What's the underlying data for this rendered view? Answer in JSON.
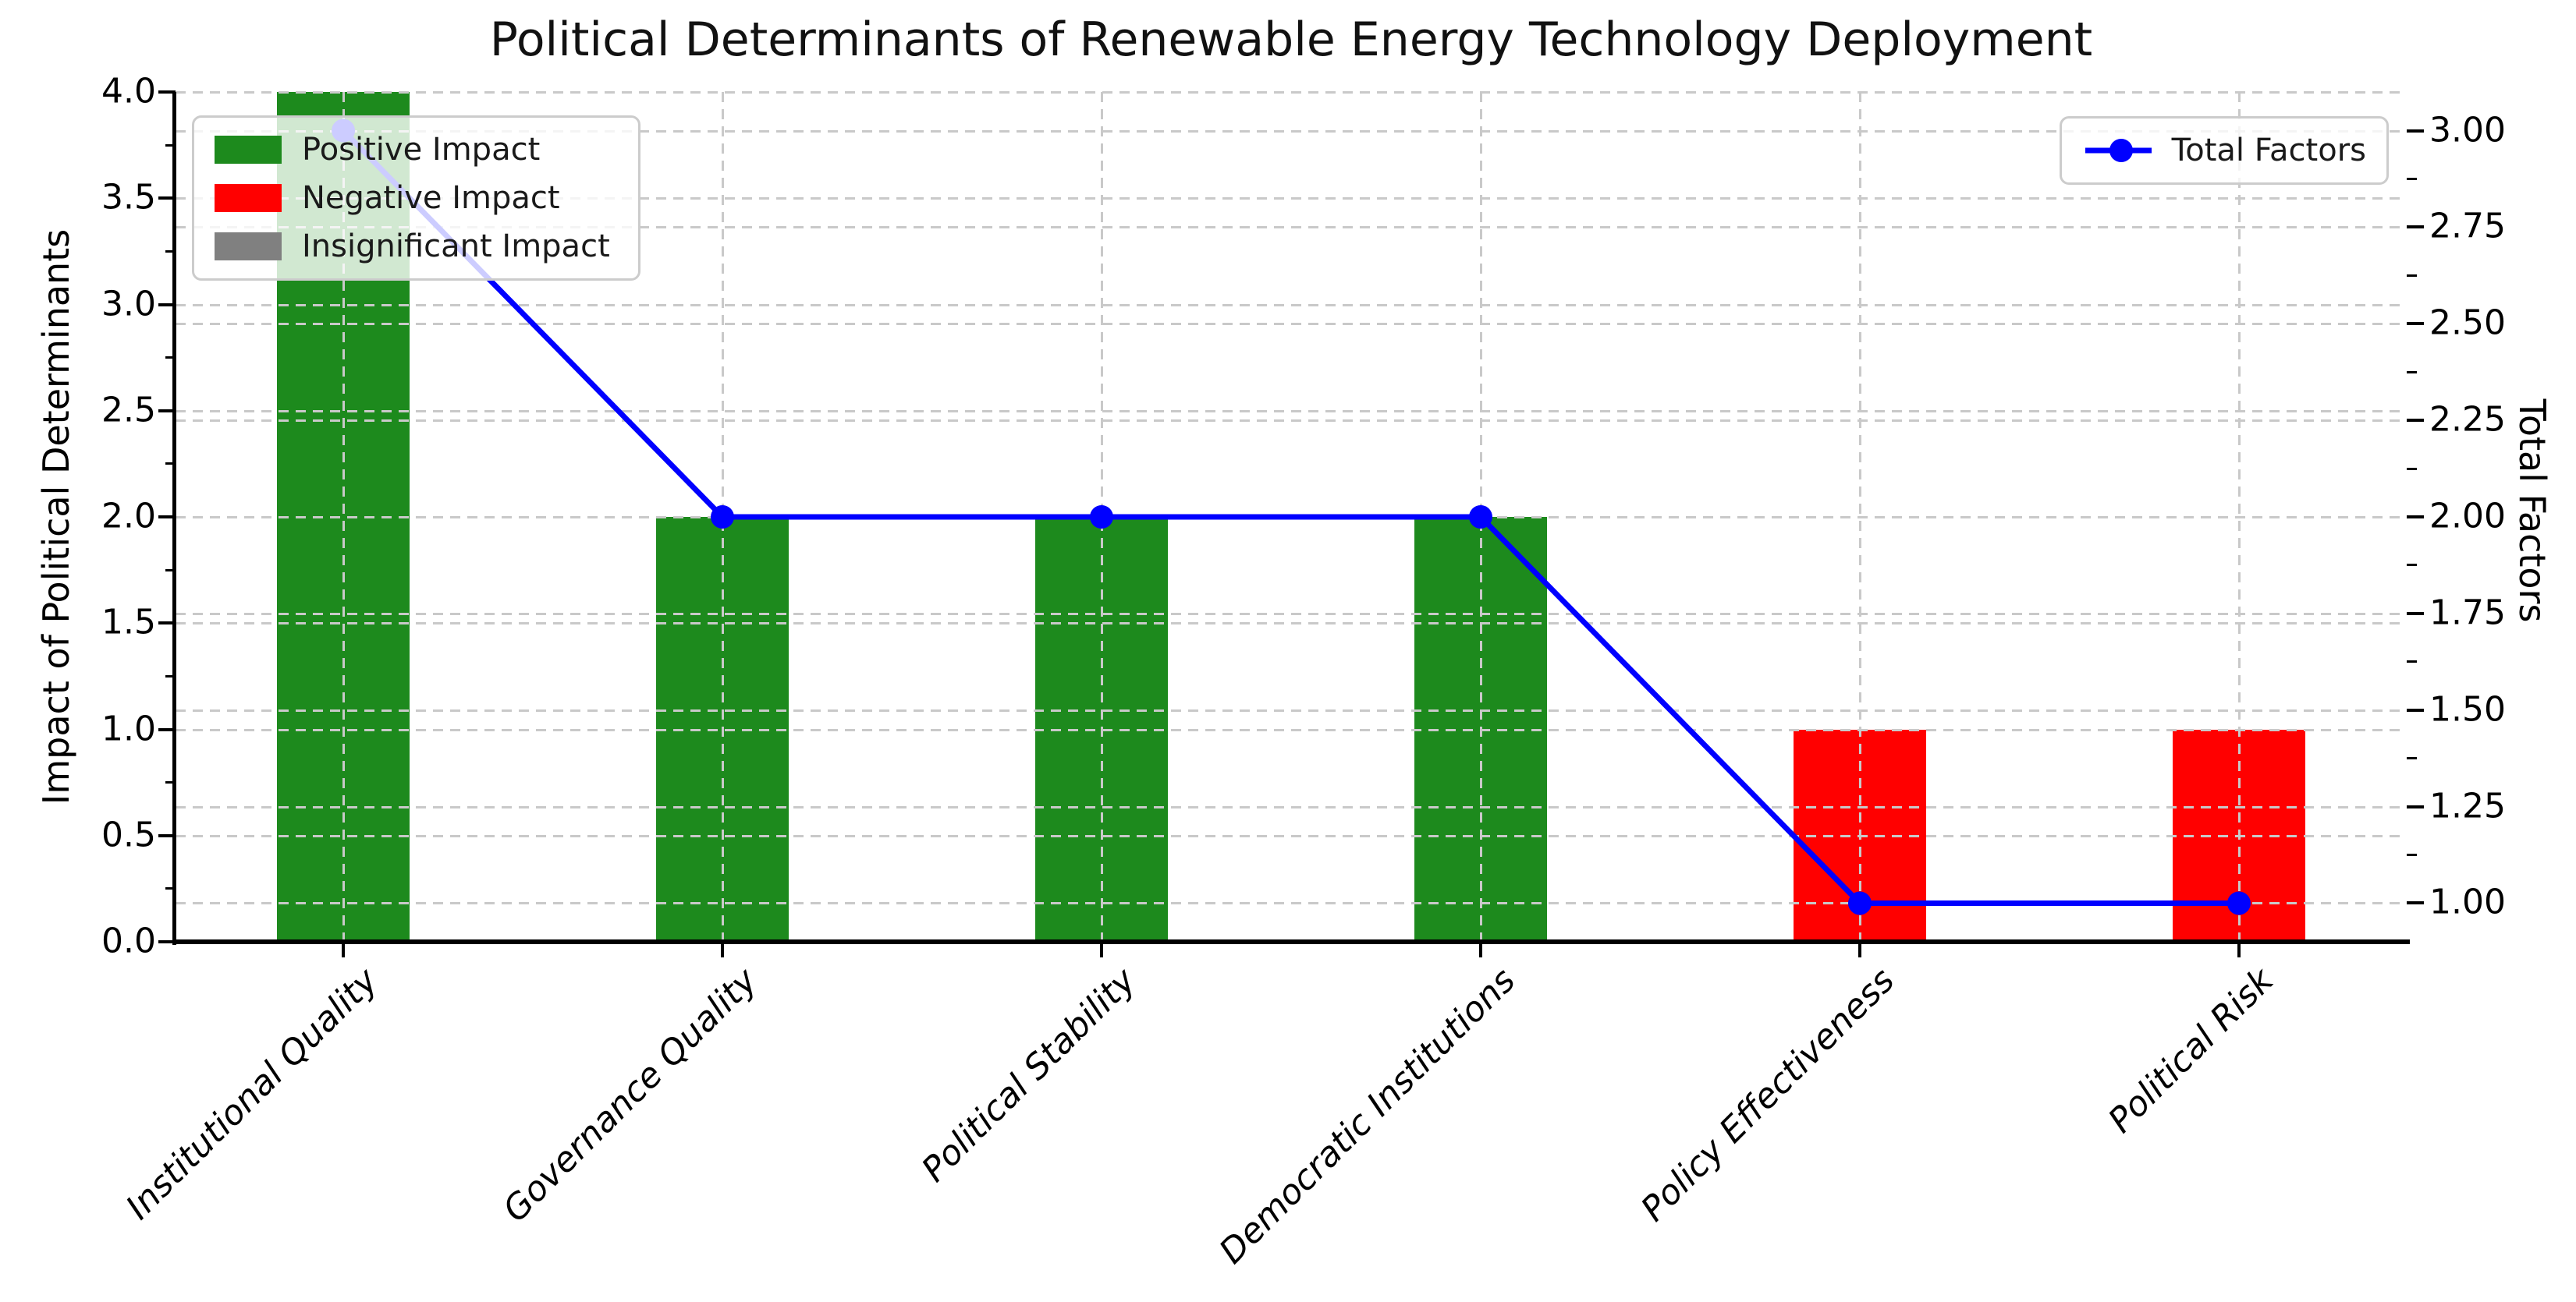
{
  "chart_data": {
    "type": "bar+line dual-axis",
    "title": "Political Determinants of Renewable Energy Technology Deployment",
    "categories": [
      "Institutional Quality",
      "Governance Quality",
      "Political Stability",
      "Democratic Institutions",
      "Policy Effectiveness",
      "Political Risk"
    ],
    "bar_series": {
      "name": "Impact of Political Determinants",
      "axis": "left",
      "values": [
        4.0,
        2.0,
        2.0,
        2.0,
        1.0,
        1.0
      ],
      "impact_type": [
        "Positive Impact",
        "Positive Impact",
        "Positive Impact",
        "Positive Impact",
        "Negative Impact",
        "Negative Impact"
      ],
      "colors": [
        "#1d8a1d",
        "#1d8a1d",
        "#1d8a1d",
        "#1d8a1d",
        "#ff0000",
        "#ff0000"
      ]
    },
    "line_series": {
      "name": "Total Factors",
      "axis": "right",
      "values": [
        3.0,
        2.0,
        2.0,
        2.0,
        1.0,
        1.0
      ],
      "color": "#0000ff",
      "marker": "circle"
    },
    "left_axis": {
      "label": "Impact of Political Determinants",
      "tick_labels": [
        "0.0",
        "0.5",
        "1.0",
        "1.5",
        "2.0",
        "2.5",
        "3.0",
        "3.5",
        "4.0"
      ],
      "tick_values": [
        0,
        0.5,
        1,
        1.5,
        2,
        2.5,
        3,
        3.5,
        4
      ],
      "range": [
        0,
        4
      ]
    },
    "right_axis": {
      "label": "Total Factors",
      "tick_labels": [
        "1.00",
        "1.25",
        "1.50",
        "1.75",
        "2.00",
        "2.25",
        "2.50",
        "2.75",
        "3.00"
      ],
      "tick_values": [
        1,
        1.25,
        1.5,
        1.75,
        2,
        2.25,
        2.5,
        2.75,
        3
      ],
      "range": [
        0.9,
        3.1
      ]
    },
    "legend_bar": {
      "position": "upper left",
      "items": [
        {
          "label": "Positive Impact",
          "color": "#1d8a1d"
        },
        {
          "label": "Negative Impact",
          "color": "#ff0000"
        },
        {
          "label": "Insignificant Impact",
          "color": "#808080"
        }
      ]
    },
    "legend_line": {
      "position": "upper right",
      "items": [
        {
          "label": "Total Factors",
          "color": "#0000ff"
        }
      ]
    },
    "grid": {
      "show": true,
      "style": "dashed",
      "color": "#c9c9c9",
      "both_axes": true
    },
    "x_tick_rotation": 45,
    "x_tick_style": "italic"
  },
  "colors": {
    "background": "#ffffff",
    "spine": "#000000",
    "text": "#000000",
    "positive": "#1d8a1d",
    "negative": "#ff0000",
    "insignificant": "#808080",
    "line": "#0000ff"
  }
}
